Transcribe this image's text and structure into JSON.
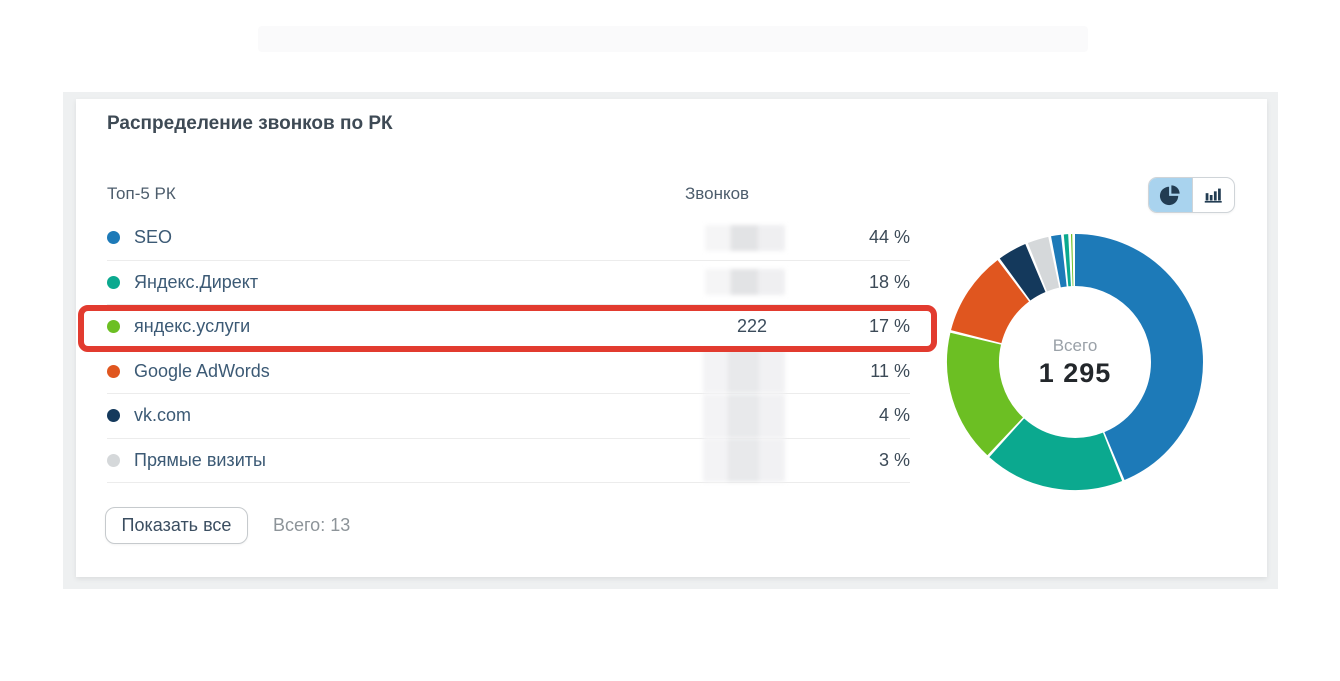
{
  "panel": {
    "title": "Распределение звонков по РК",
    "table": {
      "col_campaign": "Топ-5 РК",
      "col_calls": "Звонков",
      "rows": [
        {
          "label": "SEO",
          "color": "#1d7ab8",
          "calls": "",
          "calls_redacted": true,
          "percent": "44 %",
          "highlighted": false
        },
        {
          "label": "Яндекс.Директ",
          "color": "#0ba98f",
          "calls": "",
          "calls_redacted": true,
          "percent": "18 %",
          "highlighted": false
        },
        {
          "label": "яндекс.услуги",
          "color": "#6cbf23",
          "calls": "222",
          "calls_redacted": false,
          "percent": "17 %",
          "highlighted": true
        },
        {
          "label": "Google AdWords",
          "color": "#e0561f",
          "calls": "",
          "calls_redacted": true,
          "percent": "11 %",
          "highlighted": false
        },
        {
          "label": "vk.com",
          "color": "#14395c",
          "calls": "",
          "calls_redacted": true,
          "percent": "4 %",
          "highlighted": false
        },
        {
          "label": "Прямые визиты",
          "color": "#d5d8da",
          "calls": "",
          "calls_redacted": true,
          "percent": "3 %",
          "highlighted": false
        }
      ]
    },
    "footer": {
      "show_all_label": "Показать все",
      "total_label": "Всего: 13"
    },
    "toggle": {
      "active": "pie-chart",
      "options": [
        "pie-chart",
        "bar-chart"
      ],
      "active_bg": "#a9d3ee"
    },
    "donut": {
      "center_label": "Всего",
      "center_value": "1 295"
    },
    "colors": {
      "highlight_red": "#e23b2f",
      "frame_gray": "#eef0f1"
    }
  },
  "chart_data": {
    "type": "pie",
    "title": "Распределение звонков по РК",
    "center_label": "Всего",
    "center_value": "1 295",
    "total_calls": 1295,
    "total_campaigns_note": "Всего: 13",
    "segments": [
      {
        "name": "SEO",
        "percent": 44,
        "color": "#1d7ab8"
      },
      {
        "name": "Яндекс.Директ",
        "percent": 18,
        "color": "#0ba98f"
      },
      {
        "name": "яндекс.услуги",
        "percent": 17,
        "color": "#6cbf23",
        "calls": 222
      },
      {
        "name": "Google AdWords",
        "percent": 11,
        "color": "#e0561f"
      },
      {
        "name": "vk.com",
        "percent": 4,
        "color": "#14395c"
      },
      {
        "name": "Прямые визиты",
        "percent": 3,
        "color": "#d5d8da"
      },
      {
        "name": "unlabeled-1",
        "percent": 1.6,
        "color": "#1d7ab8"
      },
      {
        "name": "unlabeled-2",
        "percent": 0.9,
        "color": "#0ba98f"
      },
      {
        "name": "unlabeled-3",
        "percent": 0.5,
        "color": "#6cbf23"
      }
    ],
    "legend_position": "left-table",
    "donut_hole_ratio": 0.59
  }
}
